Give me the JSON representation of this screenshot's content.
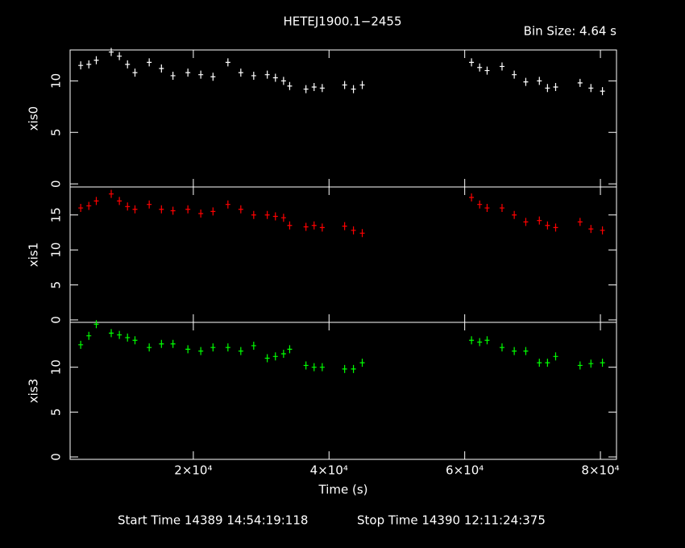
{
  "title": "HETEJ1900.1−2455",
  "bin_size": "Bin Size: 4.64 s",
  "x_label": "Time (s)",
  "start_time": "Start Time 14389 14:54:19:118",
  "stop_time": "Stop Time 14390 12:11:24:375",
  "chart_data": [
    {
      "type": "scatter",
      "y_label": "xis0",
      "color": "#ffffff",
      "xlim": [
        1840,
        82370
      ],
      "ylim": [
        -0.3,
        13
      ],
      "xticks": [
        {
          "value": 20000,
          "label": "2×10⁴"
        },
        {
          "value": 40000,
          "label": "4×10⁴"
        },
        {
          "value": 60000,
          "label": "6×10⁴"
        },
        {
          "value": 80000,
          "label": "8×10⁴"
        }
      ],
      "yticks": [
        0,
        5,
        10
      ],
      "x": [
        3400,
        4600,
        5700,
        7900,
        9100,
        10300,
        11400,
        13500,
        15300,
        17000,
        19200,
        21100,
        22900,
        25100,
        27000,
        28900,
        30900,
        32100,
        33300,
        34200,
        36600,
        37800,
        39000,
        42300,
        43600,
        44900,
        61000,
        62200,
        63300,
        65500,
        67300,
        69000,
        71000,
        72200,
        73400,
        77000,
        78600,
        80300
      ],
      "values": [
        11.5,
        11.6,
        12.0,
        12.8,
        12.4,
        11.6,
        10.8,
        11.8,
        11.2,
        10.5,
        10.8,
        10.6,
        10.4,
        11.8,
        10.8,
        10.5,
        10.6,
        10.3,
        10.0,
        9.5,
        9.2,
        9.4,
        9.3,
        9.6,
        9.2,
        9.6,
        11.8,
        11.3,
        11.0,
        11.4,
        10.6,
        9.9,
        10.0,
        9.3,
        9.4,
        9.8,
        9.3,
        9.0
      ]
    },
    {
      "type": "scatter",
      "y_label": "xis1",
      "color": "#ff0000",
      "xlim": [
        1840,
        82370
      ],
      "ylim": [
        -0.35,
        19
      ],
      "xticks": [
        {
          "value": 20000,
          "label": "2×10⁴"
        },
        {
          "value": 40000,
          "label": "4×10⁴"
        },
        {
          "value": 60000,
          "label": "6×10⁴"
        },
        {
          "value": 80000,
          "label": "8×10⁴"
        }
      ],
      "yticks": [
        0,
        5,
        10,
        15
      ],
      "x": [
        3400,
        4600,
        5700,
        7900,
        9100,
        10300,
        11400,
        13500,
        15300,
        17000,
        19200,
        21100,
        22900,
        25100,
        27000,
        28900,
        30900,
        32100,
        33300,
        34200,
        36600,
        37800,
        39000,
        42300,
        43600,
        44900,
        61000,
        62200,
        63300,
        65500,
        67300,
        69000,
        71000,
        72200,
        73400,
        77000,
        78600,
        80300
      ],
      "values": [
        16,
        16.3,
        17,
        18,
        17,
        16.2,
        15.8,
        16.5,
        15.8,
        15.6,
        15.8,
        15.2,
        15.5,
        16.5,
        15.8,
        15,
        15,
        14.8,
        14.6,
        13.5,
        13.3,
        13.5,
        13.2,
        13.4,
        12.8,
        12.4,
        17.5,
        16.5,
        16,
        16,
        15,
        14,
        14.2,
        13.5,
        13.2,
        14,
        13,
        12.8
      ]
    },
    {
      "type": "scatter",
      "y_label": "xis3",
      "color": "#00ff00",
      "xlim": [
        1840,
        82370
      ],
      "ylim": [
        -0.27,
        15
      ],
      "xticks": [
        {
          "value": 20000,
          "label": "2×10⁴"
        },
        {
          "value": 40000,
          "label": "4×10⁴"
        },
        {
          "value": 60000,
          "label": "6×10⁴"
        },
        {
          "value": 80000,
          "label": "8×10⁴"
        }
      ],
      "yticks": [
        0,
        5,
        10
      ],
      "x": [
        3400,
        4600,
        5700,
        7900,
        9100,
        10300,
        11400,
        13500,
        15300,
        17000,
        19200,
        21100,
        22900,
        25100,
        27000,
        28900,
        30900,
        32100,
        33300,
        34200,
        36600,
        37800,
        39000,
        42300,
        43600,
        44900,
        61000,
        62200,
        63300,
        65500,
        67300,
        69000,
        71000,
        72200,
        73400,
        77000,
        78600,
        80300
      ],
      "values": [
        12.5,
        13.5,
        14.8,
        13.8,
        13.6,
        13.3,
        13,
        12.2,
        12.6,
        12.6,
        12,
        11.8,
        12.2,
        12.2,
        11.8,
        12.4,
        11,
        11.2,
        11.5,
        12,
        10.2,
        10,
        10,
        9.8,
        9.8,
        10.5,
        13,
        12.8,
        13,
        12.2,
        11.8,
        11.8,
        10.5,
        10.5,
        11.2,
        10.2,
        10.4,
        10.5
      ]
    }
  ]
}
